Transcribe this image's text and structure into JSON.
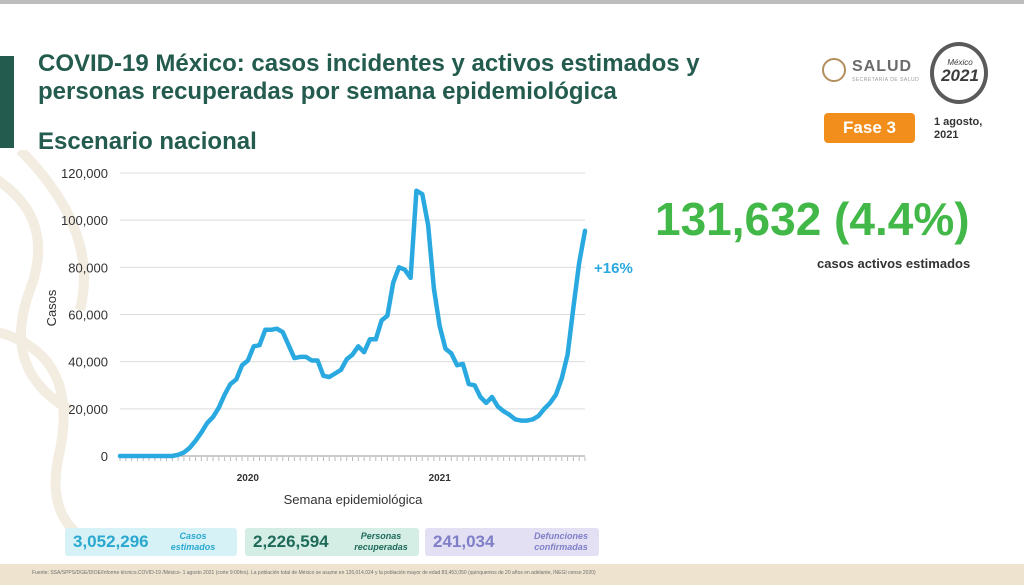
{
  "title": {
    "line1": "COVID-19 México: casos incidentes y activos estimados y",
    "line2": "personas recuperadas por semana epidemiológica"
  },
  "subtitle": "Escenario nacional",
  "logos": {
    "salud": "SALUD",
    "salud_sub": "SECRETARÍA DE SALUD",
    "mexico": "México",
    "year": "2021"
  },
  "phase": "Fase 3",
  "date": {
    "line1": "1 agosto,",
    "line2": "2021"
  },
  "highlight": {
    "value": "131,632 (4.4%)",
    "label": "casos activos estimados"
  },
  "stats": [
    {
      "value": "3,052,296",
      "label1": "Casos",
      "label2": "estimados"
    },
    {
      "value": "2,226,594",
      "label1": "Personas",
      "label2": "recuperadas"
    },
    {
      "value": "241,034",
      "label1": "Defunciones",
      "label2": "confirmadas"
    }
  ],
  "footer": "Fuente: SSA/SPPS/DGE/DIOE/Informe técnico.COVID-19 /México- 1 agosto 2021 (corte 9:00hrs). La población total de México se asume en 126,014,024 y la población mayor de edad 83,453,050 (quinquenios de 20 años en adelante, INEGI censo 2020)",
  "colors": {
    "line": "#29a9e0",
    "title": "#235b4e",
    "highlight": "#41b847",
    "phase": "#f18e1c"
  },
  "chart_data": {
    "type": "line",
    "ylabel": "Casos",
    "xlabel": "Semana epidemiológica",
    "ylim": [
      0,
      120000
    ],
    "yticks": [
      "0",
      "20,000",
      "40,000",
      "60,000",
      "80,000",
      "100,000",
      "120,000"
    ],
    "year_labels": [
      {
        "label": "2020",
        "week_index": 22
      },
      {
        "label": "2021",
        "week_index": 55
      }
    ],
    "annotation": "+16%",
    "grid": true,
    "series": [
      {
        "values": [
          0,
          0,
          0,
          0,
          0,
          0,
          0,
          0,
          0,
          0,
          500,
          1500,
          3500,
          6500,
          10000,
          14000,
          16500,
          20500,
          26000,
          30500,
          32500,
          38500,
          40500,
          46500,
          47000,
          53500,
          53500,
          54000,
          52500,
          47000,
          41500,
          42000,
          42000,
          40500,
          40500,
          34000,
          33500,
          35000,
          36500,
          41000,
          43000,
          46500,
          44000,
          49500,
          49500,
          57500,
          59500,
          73500,
          80000,
          79000,
          75500,
          112500,
          111000,
          98000,
          71000,
          55000,
          45500,
          43500,
          38500,
          39000,
          30500,
          30000,
          25000,
          22500,
          25000,
          21000,
          19000,
          17500,
          15500,
          15000,
          15000,
          15500,
          17000,
          20000,
          22500,
          26000,
          33000,
          43000,
          63000,
          82000,
          95500
        ]
      }
    ]
  }
}
